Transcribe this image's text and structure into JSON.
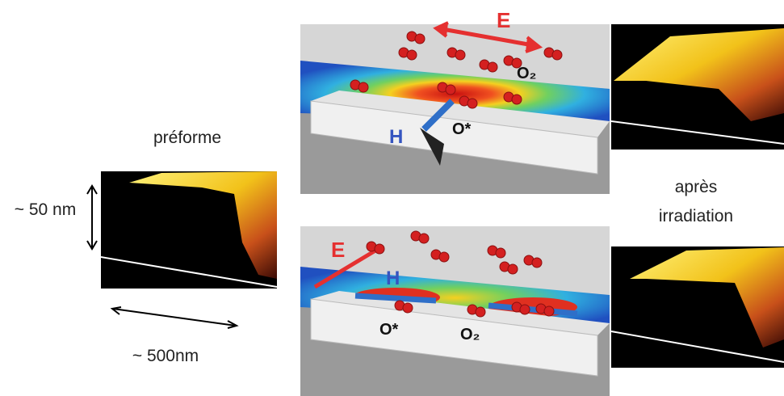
{
  "left": {
    "label": "préforme",
    "height_label": "~ 50 nm",
    "width_label": "~ 500nm"
  },
  "panels": [
    {
      "field_e": "E",
      "field_h": "H",
      "oxygen_molecule": "O₂",
      "oxygen_atom": "O*"
    },
    {
      "field_e": "E",
      "field_h": "H",
      "oxygen_atom": "O*",
      "oxygen_molecule": "O₂"
    }
  ],
  "right": {
    "label_lines": [
      "après",
      "irradiation"
    ]
  }
}
